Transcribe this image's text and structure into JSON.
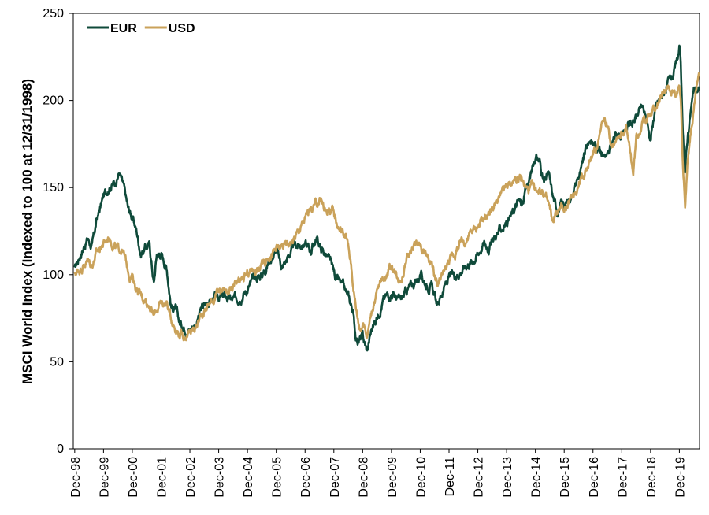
{
  "chart_data": {
    "type": "line",
    "title": "",
    "xlabel": "",
    "ylabel": "MSCI World Index (Indexed to 100 at 12/31/1998)",
    "ylim": [
      0,
      250
    ],
    "yticks": [
      "0",
      "50",
      "100",
      "150",
      "200",
      "250"
    ],
    "x_range": [
      1998.95,
      2020.7
    ],
    "x_ticks": [
      {
        "label": "Dec-98",
        "x": 1999.0
      },
      {
        "label": "Dec-99",
        "x": 2000.0
      },
      {
        "label": "Dec-00",
        "x": 2001.0
      },
      {
        "label": "Dec-01",
        "x": 2002.0
      },
      {
        "label": "Dec-02",
        "x": 2003.0
      },
      {
        "label": "Dec-03",
        "x": 2004.0
      },
      {
        "label": "Dec-04",
        "x": 2005.0
      },
      {
        "label": "Dec-05",
        "x": 2006.0
      },
      {
        "label": "Dec-06",
        "x": 2007.0
      },
      {
        "label": "Dec-07",
        "x": 2008.0
      },
      {
        "label": "Dec-08",
        "x": 2009.0
      },
      {
        "label": "Dec-09",
        "x": 2010.0
      },
      {
        "label": "Dec-10",
        "x": 2011.0
      },
      {
        "label": "Dec-11",
        "x": 2012.0
      },
      {
        "label": "Dec-12",
        "x": 2013.0
      },
      {
        "label": "Dec-13",
        "x": 2014.0
      },
      {
        "label": "Dec-14",
        "x": 2015.0
      },
      {
        "label": "Dec-15",
        "x": 2016.0
      },
      {
        "label": "Dec-16",
        "x": 2017.0
      },
      {
        "label": "Dec-17",
        "x": 2018.0
      },
      {
        "label": "Dec-18",
        "x": 2019.0
      },
      {
        "label": "Dec-19",
        "x": 2020.0
      }
    ],
    "grid": false,
    "legend": {
      "position": "top-left",
      "orientation": "horizontal"
    },
    "series": [
      {
        "name": "EUR",
        "color": "#0f4a3a",
        "points": [
          [
            1999.0,
            103
          ],
          [
            1999.2,
            112
          ],
          [
            1999.45,
            121
          ],
          [
            1999.6,
            116
          ],
          [
            1999.75,
            130
          ],
          [
            2000.0,
            145
          ],
          [
            2000.2,
            151
          ],
          [
            2000.4,
            153
          ],
          [
            2000.55,
            159
          ],
          [
            2000.7,
            150
          ],
          [
            2000.85,
            138
          ],
          [
            2001.0,
            133
          ],
          [
            2001.15,
            125
          ],
          [
            2001.3,
            112
          ],
          [
            2001.45,
            116
          ],
          [
            2001.6,
            117
          ],
          [
            2001.75,
            95
          ],
          [
            2001.85,
            112
          ],
          [
            2002.0,
            112
          ],
          [
            2002.2,
            104
          ],
          [
            2002.35,
            82
          ],
          [
            2002.5,
            80
          ],
          [
            2002.65,
            72
          ],
          [
            2002.8,
            70
          ],
          [
            2003.0,
            69
          ],
          [
            2003.2,
            72
          ],
          [
            2003.4,
            80
          ],
          [
            2003.6,
            84
          ],
          [
            2003.8,
            86
          ],
          [
            2004.0,
            87
          ],
          [
            2004.25,
            87
          ],
          [
            2004.5,
            85
          ],
          [
            2004.75,
            88
          ],
          [
            2005.0,
            92
          ],
          [
            2005.25,
            98
          ],
          [
            2005.5,
            100
          ],
          [
            2005.75,
            108
          ],
          [
            2006.0,
            114
          ],
          [
            2006.2,
            104
          ],
          [
            2006.4,
            110
          ],
          [
            2006.6,
            116
          ],
          [
            2006.8,
            117
          ],
          [
            2007.0,
            118
          ],
          [
            2007.2,
            114
          ],
          [
            2007.4,
            121
          ],
          [
            2007.55,
            115
          ],
          [
            2007.7,
            112
          ],
          [
            2007.9,
            106
          ],
          [
            2008.1,
            97
          ],
          [
            2008.3,
            93
          ],
          [
            2008.5,
            87
          ],
          [
            2008.65,
            80
          ],
          [
            2008.75,
            66
          ],
          [
            2008.85,
            62
          ],
          [
            2009.0,
            64
          ],
          [
            2009.15,
            56
          ],
          [
            2009.3,
            68
          ],
          [
            2009.5,
            76
          ],
          [
            2009.7,
            85
          ],
          [
            2009.85,
            88
          ],
          [
            2010.0,
            90
          ],
          [
            2010.2,
            86
          ],
          [
            2010.35,
            85
          ],
          [
            2010.5,
            90
          ],
          [
            2010.7,
            94
          ],
          [
            2010.85,
            96
          ],
          [
            2011.0,
            100
          ],
          [
            2011.2,
            95
          ],
          [
            2011.4,
            93
          ],
          [
            2011.6,
            82
          ],
          [
            2011.75,
            90
          ],
          [
            2011.9,
            95
          ],
          [
            2012.0,
            98
          ],
          [
            2012.2,
            100
          ],
          [
            2012.4,
            102
          ],
          [
            2012.6,
            106
          ],
          [
            2012.8,
            108
          ],
          [
            2013.0,
            112
          ],
          [
            2013.2,
            118
          ],
          [
            2013.4,
            116
          ],
          [
            2013.6,
            122
          ],
          [
            2013.8,
            126
          ],
          [
            2014.0,
            130
          ],
          [
            2014.2,
            135
          ],
          [
            2014.4,
            142
          ],
          [
            2014.55,
            140
          ],
          [
            2014.7,
            150
          ],
          [
            2014.85,
            158
          ],
          [
            2015.0,
            168
          ],
          [
            2015.15,
            165
          ],
          [
            2015.3,
            152
          ],
          [
            2015.45,
            158
          ],
          [
            2015.6,
            145
          ],
          [
            2015.75,
            137
          ],
          [
            2015.9,
            140
          ],
          [
            2016.0,
            140
          ],
          [
            2016.15,
            142
          ],
          [
            2016.3,
            148
          ],
          [
            2016.45,
            155
          ],
          [
            2016.6,
            160
          ],
          [
            2016.75,
            172
          ],
          [
            2016.9,
            178
          ],
          [
            2017.0,
            176
          ],
          [
            2017.2,
            173
          ],
          [
            2017.4,
            170
          ],
          [
            2017.55,
            168
          ],
          [
            2017.7,
            177
          ],
          [
            2017.85,
            182
          ],
          [
            2018.0,
            180
          ],
          [
            2018.2,
            186
          ],
          [
            2018.4,
            188
          ],
          [
            2018.55,
            192
          ],
          [
            2018.7,
            196
          ],
          [
            2018.85,
            190
          ],
          [
            2019.0,
            178
          ],
          [
            2019.15,
            195
          ],
          [
            2019.3,
            200
          ],
          [
            2019.5,
            206
          ],
          [
            2019.65,
            210
          ],
          [
            2019.8,
            215
          ],
          [
            2019.9,
            220
          ],
          [
            2020.0,
            229
          ],
          [
            2020.05,
            220
          ],
          [
            2020.12,
            178
          ],
          [
            2020.2,
            160
          ],
          [
            2020.3,
            182
          ],
          [
            2020.4,
            195
          ],
          [
            2020.5,
            205
          ],
          [
            2020.6,
            204
          ],
          [
            2020.68,
            206
          ]
        ]
      },
      {
        "name": "USD",
        "color": "#caa25a",
        "points": [
          [
            1999.0,
            100
          ],
          [
            1999.2,
            104
          ],
          [
            1999.45,
            108
          ],
          [
            1999.6,
            106
          ],
          [
            1999.75,
            112
          ],
          [
            2000.0,
            118
          ],
          [
            2000.2,
            122
          ],
          [
            2000.35,
            117
          ],
          [
            2000.5,
            114
          ],
          [
            2000.65,
            115
          ],
          [
            2000.8,
            106
          ],
          [
            2000.9,
            100
          ],
          [
            2001.0,
            99
          ],
          [
            2001.15,
            92
          ],
          [
            2001.3,
            88
          ],
          [
            2001.45,
            86
          ],
          [
            2001.6,
            83
          ],
          [
            2001.75,
            76
          ],
          [
            2001.85,
            80
          ],
          [
            2002.0,
            83
          ],
          [
            2002.2,
            84
          ],
          [
            2002.35,
            75
          ],
          [
            2002.5,
            70
          ],
          [
            2002.65,
            66
          ],
          [
            2002.8,
            65
          ],
          [
            2003.0,
            66
          ],
          [
            2003.2,
            70
          ],
          [
            2003.4,
            77
          ],
          [
            2003.6,
            82
          ],
          [
            2003.8,
            86
          ],
          [
            2004.0,
            90
          ],
          [
            2004.2,
            92
          ],
          [
            2004.4,
            90
          ],
          [
            2004.6,
            93
          ],
          [
            2004.8,
            96
          ],
          [
            2005.0,
            100
          ],
          [
            2005.2,
            104
          ],
          [
            2005.4,
            103
          ],
          [
            2005.6,
            108
          ],
          [
            2005.8,
            112
          ],
          [
            2006.0,
            114
          ],
          [
            2006.2,
            116
          ],
          [
            2006.4,
            118
          ],
          [
            2006.6,
            120
          ],
          [
            2006.8,
            126
          ],
          [
            2007.0,
            132
          ],
          [
            2007.2,
            138
          ],
          [
            2007.4,
            140
          ],
          [
            2007.55,
            144
          ],
          [
            2007.7,
            136
          ],
          [
            2007.85,
            138
          ],
          [
            2008.0,
            135
          ],
          [
            2008.15,
            128
          ],
          [
            2008.3,
            125
          ],
          [
            2008.45,
            120
          ],
          [
            2008.6,
            106
          ],
          [
            2008.7,
            90
          ],
          [
            2008.8,
            78
          ],
          [
            2008.9,
            70
          ],
          [
            2009.0,
            72
          ],
          [
            2009.15,
            66
          ],
          [
            2009.3,
            78
          ],
          [
            2009.5,
            90
          ],
          [
            2009.7,
            98
          ],
          [
            2009.85,
            102
          ],
          [
            2010.0,
            104
          ],
          [
            2010.2,
            100
          ],
          [
            2010.35,
            98
          ],
          [
            2010.5,
            108
          ],
          [
            2010.7,
            115
          ],
          [
            2010.85,
            118
          ],
          [
            2011.0,
            116
          ],
          [
            2011.2,
            112
          ],
          [
            2011.4,
            104
          ],
          [
            2011.6,
            93
          ],
          [
            2011.75,
            98
          ],
          [
            2011.9,
            105
          ],
          [
            2012.0,
            108
          ],
          [
            2012.2,
            112
          ],
          [
            2012.4,
            118
          ],
          [
            2012.6,
            120
          ],
          [
            2012.8,
            125
          ],
          [
            2013.0,
            128
          ],
          [
            2013.2,
            132
          ],
          [
            2013.4,
            136
          ],
          [
            2013.6,
            140
          ],
          [
            2013.8,
            145
          ],
          [
            2014.0,
            150
          ],
          [
            2014.2,
            153
          ],
          [
            2014.4,
            156
          ],
          [
            2014.6,
            152
          ],
          [
            2014.75,
            148
          ],
          [
            2014.9,
            150
          ],
          [
            2015.0,
            148
          ],
          [
            2015.15,
            150
          ],
          [
            2015.3,
            146
          ],
          [
            2015.45,
            140
          ],
          [
            2015.6,
            130
          ],
          [
            2015.75,
            136
          ],
          [
            2015.9,
            138
          ],
          [
            2016.0,
            138
          ],
          [
            2016.15,
            140
          ],
          [
            2016.3,
            146
          ],
          [
            2016.45,
            150
          ],
          [
            2016.6,
            155
          ],
          [
            2016.75,
            160
          ],
          [
            2016.9,
            165
          ],
          [
            2017.0,
            170
          ],
          [
            2017.2,
            176
          ],
          [
            2017.35,
            188
          ],
          [
            2017.5,
            185
          ],
          [
            2017.65,
            175
          ],
          [
            2017.8,
            180
          ],
          [
            2018.0,
            182
          ],
          [
            2018.15,
            184
          ],
          [
            2018.3,
            168
          ],
          [
            2018.4,
            158
          ],
          [
            2018.5,
            178
          ],
          [
            2018.65,
            185
          ],
          [
            2018.8,
            190
          ],
          [
            2019.0,
            192
          ],
          [
            2019.15,
            195
          ],
          [
            2019.3,
            200
          ],
          [
            2019.5,
            204
          ],
          [
            2019.65,
            208
          ],
          [
            2019.8,
            205
          ],
          [
            2019.9,
            200
          ],
          [
            2020.0,
            210
          ],
          [
            2020.05,
            204
          ],
          [
            2020.12,
            165
          ],
          [
            2020.2,
            140
          ],
          [
            2020.3,
            168
          ],
          [
            2020.4,
            182
          ],
          [
            2020.5,
            195
          ],
          [
            2020.6,
            210
          ],
          [
            2020.68,
            216
          ]
        ]
      }
    ]
  }
}
